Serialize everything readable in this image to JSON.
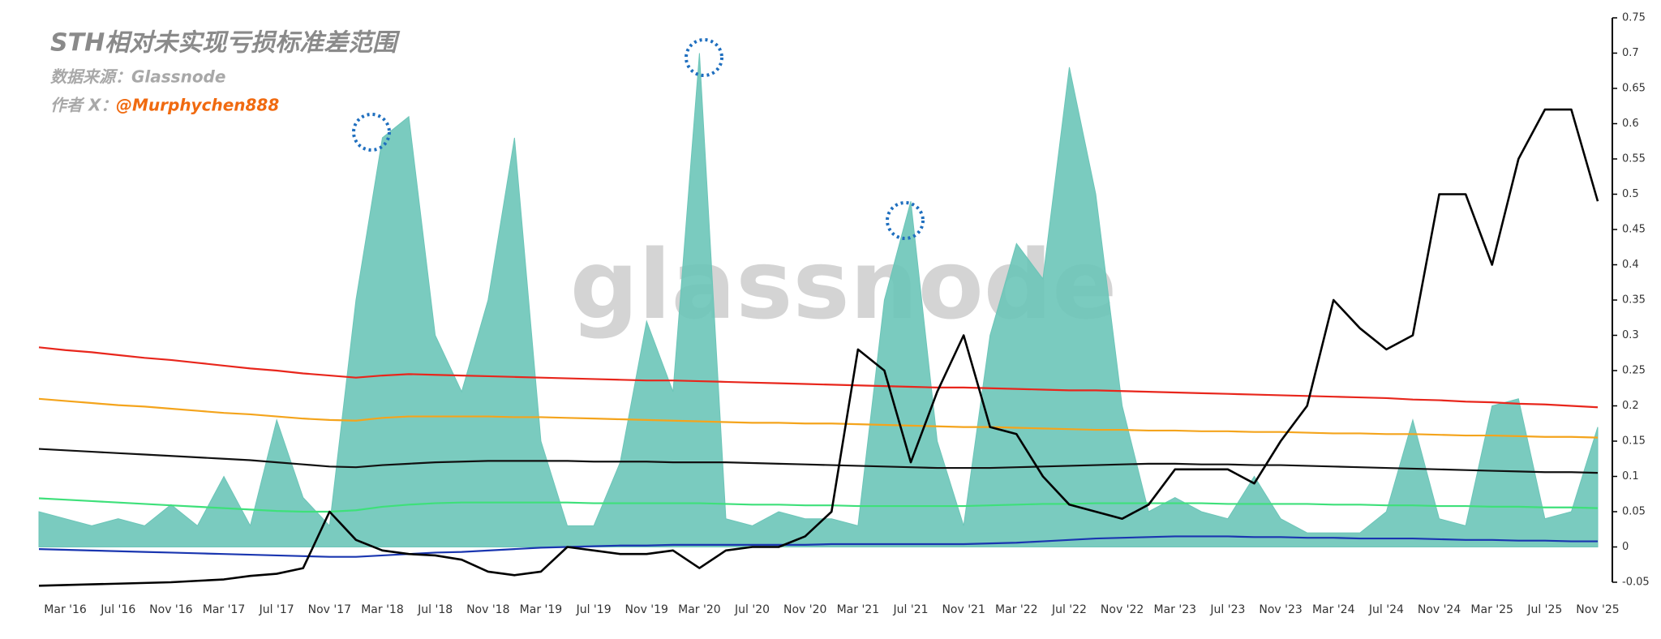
{
  "chart_data": {
    "type": "line",
    "title": "STH相对未实现亏损标准差范围",
    "source": "数据来源：Glassnode",
    "author_label": "作者 X：",
    "author": "@Murphychen888",
    "watermark": "glassnode",
    "axis_side": "right",
    "ylim": [
      -0.05,
      0.75
    ],
    "yticks": [
      -0.05,
      0,
      0.05,
      0.1,
      0.15,
      0.2,
      0.25,
      0.3,
      0.35,
      0.4,
      0.45,
      0.5,
      0.55,
      0.6,
      0.65,
      0.7,
      0.75
    ],
    "categories": [
      null,
      "Mar '16",
      null,
      "Jul '16",
      null,
      "Nov '16",
      null,
      "Mar '17",
      null,
      "Jul '17",
      null,
      "Nov '17",
      null,
      "Mar '18",
      null,
      "Jul '18",
      null,
      "Nov '18",
      null,
      "Mar '19",
      null,
      "Jul '19",
      null,
      "Nov '19",
      null,
      "Mar '20",
      null,
      "Jul '20",
      null,
      "Nov '20",
      null,
      "Mar '21",
      null,
      "Jul '21",
      null,
      "Nov '21",
      null,
      "Mar '22",
      null,
      "Jul '22",
      null,
      "Nov '22",
      null,
      "Mar '23",
      null,
      "Jul '23",
      null,
      "Nov '23",
      null,
      "Mar '24",
      null,
      "Jul '24",
      null,
      "Nov '24",
      null,
      "Mar '25",
      null,
      "Jul '25",
      null,
      "Nov '25"
    ],
    "series": [
      {
        "type": "area",
        "color": "#6cc5b8",
        "values": [
          0.05,
          0.04,
          0.03,
          0.04,
          0.03,
          0.06,
          0.03,
          0.1,
          0.03,
          0.18,
          0.07,
          0.03,
          0.35,
          0.58,
          0.61,
          0.3,
          0.22,
          0.35,
          0.58,
          0.15,
          0.03,
          0.03,
          0.12,
          0.32,
          0.22,
          0.7,
          0.04,
          0.03,
          0.05,
          0.04,
          0.04,
          0.03,
          0.35,
          0.49,
          0.15,
          0.03,
          0.3,
          0.43,
          0.38,
          0.68,
          0.5,
          0.2,
          0.05,
          0.07,
          0.05,
          0.04,
          0.1,
          0.04,
          0.02,
          0.02,
          0.02,
          0.05,
          0.18,
          0.04,
          0.03,
          0.2,
          0.21,
          0.04,
          0.05,
          0.17
        ]
      },
      {
        "type": "line",
        "color": "#e8261c",
        "values": [
          0.283,
          0.279,
          0.276,
          0.272,
          0.268,
          0.265,
          0.261,
          0.257,
          0.253,
          0.25,
          0.246,
          0.243,
          0.24,
          0.243,
          0.245,
          0.244,
          0.243,
          0.242,
          0.241,
          0.24,
          0.239,
          0.238,
          0.237,
          0.236,
          0.236,
          0.235,
          0.234,
          0.233,
          0.232,
          0.231,
          0.23,
          0.229,
          0.228,
          0.227,
          0.226,
          0.226,
          0.225,
          0.224,
          0.223,
          0.222,
          0.222,
          0.221,
          0.22,
          0.219,
          0.218,
          0.217,
          0.216,
          0.215,
          0.214,
          0.213,
          0.212,
          0.211,
          0.209,
          0.208,
          0.206,
          0.205,
          0.203,
          0.202,
          0.2,
          0.198
        ]
      },
      {
        "type": "line",
        "color": "#f4a41c",
        "values": [
          0.21,
          0.207,
          0.204,
          0.201,
          0.199,
          0.196,
          0.193,
          0.19,
          0.188,
          0.185,
          0.182,
          0.18,
          0.179,
          0.183,
          0.185,
          0.185,
          0.185,
          0.185,
          0.184,
          0.184,
          0.183,
          0.182,
          0.181,
          0.18,
          0.179,
          0.178,
          0.177,
          0.176,
          0.176,
          0.175,
          0.175,
          0.174,
          0.173,
          0.172,
          0.171,
          0.17,
          0.17,
          0.169,
          0.168,
          0.167,
          0.166,
          0.166,
          0.165,
          0.165,
          0.164,
          0.164,
          0.163,
          0.163,
          0.162,
          0.161,
          0.161,
          0.16,
          0.16,
          0.159,
          0.158,
          0.158,
          0.157,
          0.156,
          0.156,
          0.155
        ]
      },
      {
        "type": "line",
        "color": "#111111",
        "values": [
          0.139,
          0.137,
          0.135,
          0.133,
          0.131,
          0.129,
          0.127,
          0.125,
          0.123,
          0.12,
          0.117,
          0.114,
          0.113,
          0.116,
          0.118,
          0.12,
          0.121,
          0.122,
          0.122,
          0.122,
          0.122,
          0.121,
          0.121,
          0.121,
          0.12,
          0.12,
          0.12,
          0.119,
          0.118,
          0.117,
          0.116,
          0.115,
          0.114,
          0.113,
          0.112,
          0.112,
          0.112,
          0.113,
          0.114,
          0.115,
          0.116,
          0.117,
          0.118,
          0.118,
          0.117,
          0.117,
          0.116,
          0.116,
          0.115,
          0.114,
          0.113,
          0.112,
          0.111,
          0.11,
          0.109,
          0.108,
          0.107,
          0.106,
          0.106,
          0.105
        ]
      },
      {
        "type": "line",
        "color": "#3ee07a",
        "values": [
          0.069,
          0.067,
          0.065,
          0.063,
          0.061,
          0.059,
          0.057,
          0.055,
          0.053,
          0.051,
          0.05,
          0.05,
          0.052,
          0.057,
          0.06,
          0.062,
          0.063,
          0.063,
          0.063,
          0.063,
          0.063,
          0.062,
          0.062,
          0.062,
          0.062,
          0.062,
          0.061,
          0.06,
          0.06,
          0.059,
          0.059,
          0.058,
          0.058,
          0.058,
          0.058,
          0.058,
          0.059,
          0.06,
          0.061,
          0.061,
          0.062,
          0.062,
          0.062,
          0.062,
          0.062,
          0.061,
          0.061,
          0.061,
          0.061,
          0.06,
          0.06,
          0.059,
          0.059,
          0.058,
          0.058,
          0.057,
          0.057,
          0.056,
          0.056,
          0.055
        ]
      },
      {
        "type": "line",
        "color": "#1a36b0",
        "values": [
          -0.003,
          -0.004,
          -0.005,
          -0.006,
          -0.007,
          -0.008,
          -0.009,
          -0.01,
          -0.011,
          -0.012,
          -0.013,
          -0.014,
          -0.014,
          -0.012,
          -0.01,
          -0.008,
          -0.007,
          -0.005,
          -0.003,
          -0.001,
          0,
          0.001,
          0.002,
          0.002,
          0.003,
          0.003,
          0.003,
          0.003,
          0.003,
          0.003,
          0.004,
          0.004,
          0.004,
          0.004,
          0.004,
          0.004,
          0.005,
          0.006,
          0.008,
          0.01,
          0.012,
          0.013,
          0.014,
          0.015,
          0.015,
          0.015,
          0.014,
          0.014,
          0.013,
          0.013,
          0.012,
          0.012,
          0.012,
          0.011,
          0.01,
          0.01,
          0.009,
          0.009,
          0.008,
          0.008
        ]
      },
      {
        "type": "line",
        "color": "#000000",
        "values": [
          -0.055,
          -0.054,
          -0.053,
          -0.052,
          -0.051,
          -0.05,
          -0.048,
          -0.046,
          -0.041,
          -0.038,
          -0.03,
          0.05,
          0.01,
          -0.005,
          -0.01,
          -0.012,
          -0.018,
          -0.035,
          -0.04,
          -0.035,
          0,
          -0.005,
          -0.01,
          -0.01,
          -0.005,
          -0.03,
          -0.005,
          0,
          0,
          0.015,
          0.05,
          0.28,
          0.25,
          0.12,
          0.22,
          0.3,
          0.17,
          0.16,
          0.1,
          0.06,
          0.05,
          0.04,
          0.06,
          0.11,
          0.11,
          0.11,
          0.09,
          0.15,
          0.2,
          0.35,
          0.31,
          0.28,
          0.3,
          0.5,
          0.5,
          0.4,
          0.55,
          0.62,
          0.62,
          0.49
        ]
      }
    ]
  }
}
